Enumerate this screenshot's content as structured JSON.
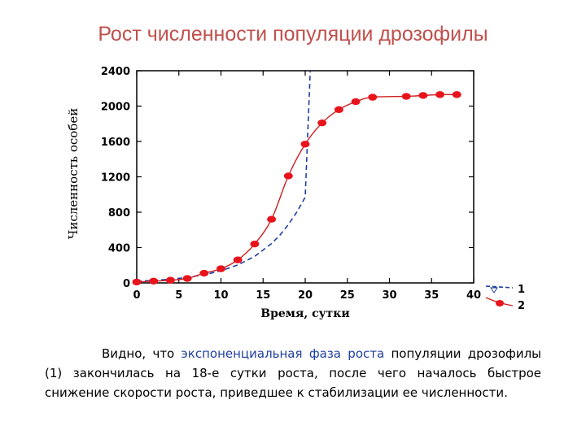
{
  "title": "Рост численности популяции дрозофилы",
  "chart_data": {
    "type": "scatter",
    "xlabel": "Время, сутки",
    "ylabel": "Численность особей",
    "xlim": [
      0,
      40
    ],
    "ylim": [
      0,
      2400
    ],
    "xticks": [
      "0",
      "5",
      "10",
      "15",
      "20",
      "25",
      "30",
      "35",
      "40"
    ],
    "yticks": [
      "0",
      "400",
      "800",
      "1200",
      "1600",
      "2000",
      "2400"
    ],
    "legend_position": "bottom-right",
    "series": [
      {
        "name": "1",
        "style": "dashed-line",
        "color": "#1f3fa0",
        "x": [
          0,
          2,
          4,
          6,
          8,
          10,
          12,
          14,
          16,
          17,
          18,
          19,
          20,
          20.6
        ],
        "y": [
          20,
          28,
          42,
          62,
          92,
          137,
          203,
          300,
          445,
          540,
          660,
          800,
          970,
          2400
        ]
      },
      {
        "name": "2",
        "style": "markers-and-line",
        "color": "#e8141c",
        "line_color": "#cc1f1f",
        "x": [
          0,
          2,
          4,
          6,
          8,
          10,
          12,
          14,
          16,
          18,
          20,
          22,
          24,
          26,
          28,
          32,
          34,
          36,
          38
        ],
        "y": [
          10,
          20,
          30,
          50,
          110,
          160,
          260,
          440,
          720,
          1210,
          1570,
          1810,
          1960,
          2050,
          2100,
          2110,
          2120,
          2130,
          2130
        ]
      }
    ]
  },
  "caption": {
    "part1": "Видно, что ",
    "highlight": "экспоненциальная фаза роста",
    "part2": " популяции дрозофилы (1) закончилась на 18-е сутки роста, после чего началось быстрое снижение скорости роста, приведшее к стабилизации ее численности."
  }
}
